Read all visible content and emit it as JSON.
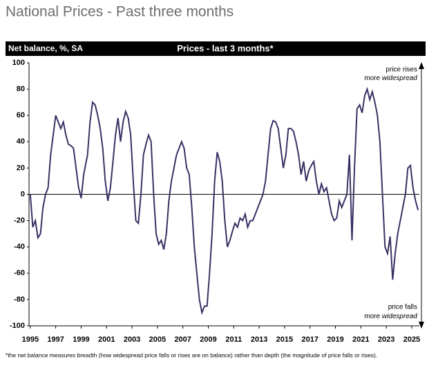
{
  "page_title": "National Prices - Past three months",
  "chart_data": {
    "type": "line",
    "title": "Prices - last 3 months*",
    "y_label": "Net balance, %, SA",
    "footnote": "*the net balance measures breadth (how widespread price falls or rises are on balance)  rather than depth (the magnitude of price falls or rises).",
    "annotations": [
      {
        "line1": "price rises",
        "line2": "more",
        "emphasis": "widespread"
      },
      {
        "line1": "price falls",
        "line2": "more",
        "emphasis": "widespread"
      }
    ],
    "xlim": [
      1994.9,
      2025.6
    ],
    "xticks": [
      1995,
      1997,
      1999,
      2001,
      2003,
      2005,
      2007,
      2009,
      2011,
      2013,
      2015,
      2017,
      2019,
      2021,
      2023,
      2025
    ],
    "ylim": [
      -100,
      100
    ],
    "yticks": [
      -100,
      -80,
      -60,
      -40,
      -20,
      0,
      20,
      40,
      60,
      80,
      100
    ],
    "x": [
      1995.0,
      1995.2,
      1995.4,
      1995.6,
      1995.8,
      1996.0,
      1996.2,
      1996.4,
      1996.6,
      1996.8,
      1997.0,
      1997.2,
      1997.4,
      1997.6,
      1997.8,
      1998.0,
      1998.2,
      1998.4,
      1998.6,
      1998.8,
      1999.0,
      1999.2,
      1999.5,
      1999.7,
      1999.9,
      2000.1,
      2000.3,
      2000.5,
      2000.7,
      2000.9,
      2001.1,
      2001.3,
      2001.5,
      2001.7,
      2001.9,
      2002.1,
      2002.3,
      2002.5,
      2002.7,
      2002.9,
      2003.1,
      2003.3,
      2003.5,
      2003.7,
      2003.9,
      2004.1,
      2004.3,
      2004.5,
      2004.7,
      2004.9,
      2005.1,
      2005.3,
      2005.5,
      2005.7,
      2005.9,
      2006.1,
      2006.3,
      2006.5,
      2006.7,
      2006.9,
      2007.1,
      2007.3,
      2007.5,
      2007.7,
      2007.9,
      2008.1,
      2008.3,
      2008.5,
      2008.7,
      2008.9,
      2009.1,
      2009.3,
      2009.5,
      2009.7,
      2009.9,
      2010.1,
      2010.3,
      2010.5,
      2010.7,
      2010.9,
      2011.1,
      2011.3,
      2011.5,
      2011.7,
      2011.9,
      2012.1,
      2012.3,
      2012.5,
      2012.7,
      2012.9,
      2013.1,
      2013.3,
      2013.5,
      2013.7,
      2013.9,
      2014.1,
      2014.3,
      2014.5,
      2014.7,
      2014.9,
      2015.1,
      2015.3,
      2015.5,
      2015.7,
      2015.9,
      2016.1,
      2016.3,
      2016.5,
      2016.7,
      2016.9,
      2017.1,
      2017.3,
      2017.5,
      2017.7,
      2017.9,
      2018.1,
      2018.3,
      2018.5,
      2018.7,
      2018.9,
      2019.1,
      2019.3,
      2019.5,
      2019.7,
      2019.9,
      2020.1,
      2020.3,
      2020.5,
      2020.7,
      2020.9,
      2021.1,
      2021.3,
      2021.5,
      2021.7,
      2021.9,
      2022.1,
      2022.3,
      2022.5,
      2022.7,
      2022.9,
      2023.1,
      2023.3,
      2023.5,
      2023.7,
      2023.9,
      2024.1,
      2024.3,
      2024.5,
      2024.7,
      2024.9,
      2025.1,
      2025.3,
      2025.5
    ],
    "series": [
      {
        "name": "Prices - last 3 months",
        "color": "#3b2f63",
        "values": [
          0,
          -25,
          -20,
          -33,
          -30,
          -10,
          0,
          5,
          30,
          45,
          60,
          55,
          50,
          55,
          45,
          38,
          37,
          35,
          20,
          5,
          -3,
          15,
          30,
          55,
          70,
          68,
          60,
          50,
          35,
          10,
          -5,
          5,
          25,
          45,
          58,
          40,
          55,
          63,
          58,
          45,
          10,
          -20,
          -22,
          0,
          30,
          38,
          45,
          40,
          0,
          -30,
          -38,
          -35,
          -42,
          -30,
          -5,
          10,
          20,
          30,
          35,
          40,
          35,
          20,
          15,
          -10,
          -40,
          -60,
          -80,
          -90,
          -85,
          -85,
          -60,
          -30,
          10,
          32,
          25,
          10,
          -20,
          -40,
          -35,
          -28,
          -22,
          -25,
          -18,
          -20,
          -15,
          -25,
          -20,
          -20,
          -15,
          -10,
          -5,
          0,
          10,
          30,
          50,
          56,
          55,
          50,
          35,
          20,
          30,
          50,
          50,
          48,
          40,
          30,
          15,
          25,
          10,
          18,
          22,
          25,
          10,
          0,
          8,
          2,
          5,
          -5,
          -15,
          -20,
          -18,
          -5,
          -10,
          -5,
          0,
          30,
          -35,
          20,
          65,
          68,
          62,
          75,
          80,
          72,
          78,
          70,
          60,
          40,
          0,
          -40,
          -45,
          -32,
          -65,
          -45,
          -30,
          -20,
          -10,
          0,
          20,
          22,
          5,
          -5,
          -12
        ]
      }
    ]
  }
}
